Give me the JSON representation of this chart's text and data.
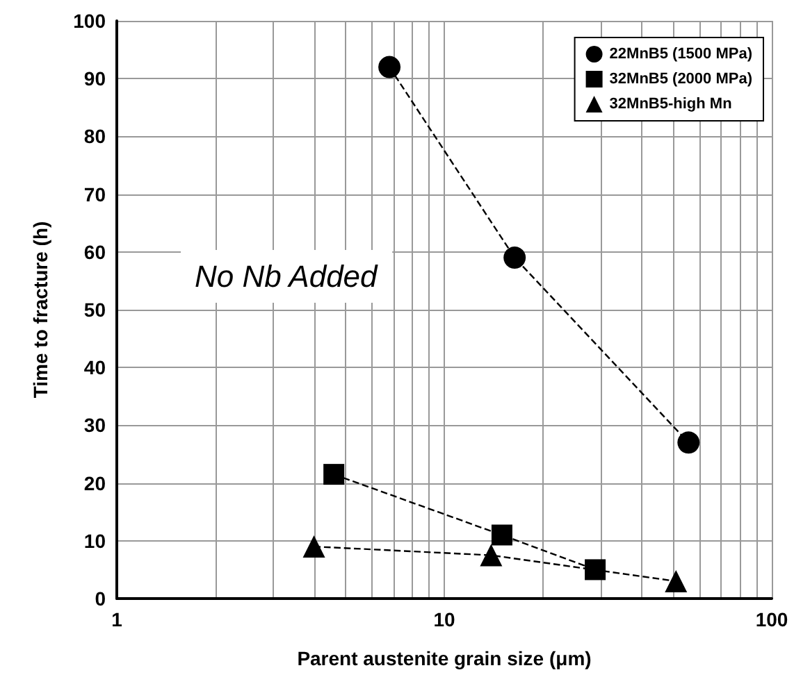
{
  "chart_data": {
    "type": "line",
    "xlabel": "Parent austenite grain size (μm)",
    "ylabel": "Time to fracture (h)",
    "log": "x",
    "xlim": [
      1,
      100
    ],
    "xticks": [
      1,
      {
        "value": 2,
        "label": null
      },
      {
        "value": 3,
        "label": null
      },
      {
        "value": 4,
        "label": null
      },
      {
        "value": 5,
        "label": null
      },
      {
        "value": 6,
        "label": null
      },
      {
        "value": 7,
        "label": null
      },
      {
        "value": 8,
        "label": null
      },
      {
        "value": 9,
        "label": null
      },
      10,
      {
        "value": 20,
        "label": null
      },
      {
        "value": 30,
        "label": null
      },
      {
        "value": 40,
        "label": null
      },
      {
        "value": 50,
        "label": null
      },
      {
        "value": 60,
        "label": null
      },
      {
        "value": 70,
        "label": null
      },
      {
        "value": 80,
        "label": null
      },
      {
        "value": 90,
        "label": null
      },
      100
    ],
    "ylim": [
      0,
      100
    ],
    "yticks": [
      0,
      10,
      20,
      30,
      40,
      50,
      60,
      70,
      80,
      90,
      100
    ],
    "grid": true,
    "legend": "top right",
    "line_style": "dashed",
    "annotations": [
      "No Nb Added"
    ],
    "series": [
      {
        "name": "22MnB5 (1500 MPa)",
        "color": "#000000",
        "marker": "circle",
        "x": [
          6.8,
          16.4,
          55.7
        ],
        "values": [
          92,
          59,
          27
        ]
      },
      {
        "name": "32MnB5 (2000 MPa)",
        "color": "#000000",
        "marker": "square",
        "x": [
          4.6,
          15,
          28.9
        ],
        "values": [
          21.5,
          11,
          5
        ]
      },
      {
        "name": "32MnB5-high Mn",
        "color": "#000000",
        "marker": "triangle",
        "x": [
          4.0,
          13.9,
          51
        ],
        "values": [
          9,
          7.5,
          3
        ]
      }
    ]
  }
}
